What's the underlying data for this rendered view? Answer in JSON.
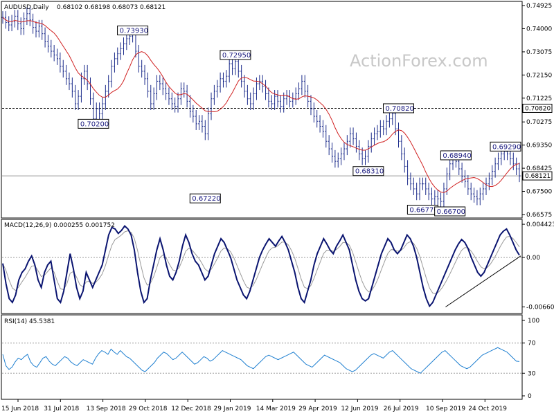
{
  "chart_data": {
    "type": "line",
    "price_panel": {
      "title": "AUDUSD,Daily",
      "ohlc": {
        "open": "0.68102",
        "high": "0.68198",
        "low": "0.68073",
        "close": "0.68121"
      },
      "y_ticks": [
        "0.74925",
        "0.74000",
        "0.73075",
        "0.72150",
        "0.71225",
        "0.70275",
        "0.69350",
        "0.68425",
        "0.67500",
        "0.66575"
      ],
      "ylim": [
        0.66575,
        0.74925
      ],
      "horizontal_lines": [
        {
          "value": 0.7082,
          "label": "0.70820",
          "style": "dashed"
        },
        {
          "value": 0.68121,
          "label": "0.68121",
          "style": "solid-gray"
        }
      ],
      "annotations": [
        {
          "label": "0.73930",
          "value": 0.7393,
          "index": 43
        },
        {
          "label": "0.70200",
          "value": 0.702,
          "index": 30
        },
        {
          "label": "0.67220",
          "value": 0.6722,
          "index": 67
        },
        {
          "label": "0.72950",
          "value": 0.7295,
          "index": 77
        },
        {
          "label": "0.70820",
          "value": 0.7082,
          "index": 131
        },
        {
          "label": "0.68310",
          "value": 0.6831,
          "index": 121
        },
        {
          "label": "0.68940",
          "value": 0.6894,
          "index": 150
        },
        {
          "label": "0.66770",
          "value": 0.6677,
          "index": 139
        },
        {
          "label": "0.66700",
          "value": 0.667,
          "index": 148
        },
        {
          "label": "0.69290",
          "value": 0.6929,
          "index": 170
        }
      ],
      "close_series": [
        0.7445,
        0.7425,
        0.7415,
        0.743,
        0.745,
        0.742,
        0.74,
        0.744,
        0.746,
        0.7435,
        0.7405,
        0.739,
        0.741,
        0.738,
        0.735,
        0.733,
        0.731,
        0.7295,
        0.728,
        0.725,
        0.723,
        0.72,
        0.718,
        0.715,
        0.71,
        0.713,
        0.72,
        0.723,
        0.718,
        0.712,
        0.704,
        0.708,
        0.706,
        0.71,
        0.715,
        0.719,
        0.725,
        0.728,
        0.73,
        0.732,
        0.734,
        0.736,
        0.737,
        0.738,
        0.731,
        0.725,
        0.723,
        0.72,
        0.715,
        0.71,
        0.714,
        0.719,
        0.718,
        0.716,
        0.714,
        0.712,
        0.71,
        0.709,
        0.712,
        0.716,
        0.715,
        0.711,
        0.707,
        0.705,
        0.702,
        0.703,
        0.701,
        0.698,
        0.706,
        0.712,
        0.715,
        0.717,
        0.72,
        0.719,
        0.721,
        0.726,
        0.724,
        0.727,
        0.723,
        0.719,
        0.715,
        0.712,
        0.71,
        0.714,
        0.718,
        0.719,
        0.717,
        0.714,
        0.711,
        0.71,
        0.713,
        0.711,
        0.709,
        0.712,
        0.713,
        0.711,
        0.712,
        0.714,
        0.716,
        0.719,
        0.715,
        0.711,
        0.708,
        0.705,
        0.703,
        0.701,
        0.699,
        0.695,
        0.692,
        0.689,
        0.687,
        0.688,
        0.69,
        0.692,
        0.695,
        0.698,
        0.696,
        0.693,
        0.69,
        0.688,
        0.689,
        0.693,
        0.696,
        0.698,
        0.699,
        0.701,
        0.7,
        0.703,
        0.704,
        0.706,
        0.7,
        0.695,
        0.69,
        0.685,
        0.68,
        0.678,
        0.676,
        0.674,
        0.678,
        0.678,
        0.676,
        0.674,
        0.672,
        0.673,
        0.672,
        0.671,
        0.676,
        0.682,
        0.686,
        0.688,
        0.687,
        0.684,
        0.681,
        0.679,
        0.676,
        0.674,
        0.673,
        0.672,
        0.674,
        0.676,
        0.678,
        0.68,
        0.683,
        0.686,
        0.688,
        0.69,
        0.691,
        0.69,
        0.688,
        0.686,
        0.684,
        0.6812
      ]
    },
    "macd_panel": {
      "title": "MACD(12,26,9) 0.000255 0.001752",
      "y_ticks": [
        "0.004423",
        "0.00",
        "-0.006603"
      ],
      "ylim": [
        -0.0072,
        0.0048
      ],
      "values": [
        -0.0008,
        -0.0035,
        -0.0055,
        -0.006,
        -0.005,
        -0.003,
        -0.002,
        -0.0015,
        -0.0005,
        0.0002,
        -0.001,
        -0.003,
        -0.004,
        -0.002,
        -0.001,
        -0.0005,
        -0.003,
        -0.0055,
        -0.006,
        -0.0045,
        -0.002,
        0.0005,
        -0.0015,
        -0.004,
        -0.0055,
        -0.0045,
        -0.002,
        -0.003,
        -0.004,
        -0.003,
        -0.002,
        -0.001,
        0.001,
        0.003,
        0.004,
        0.0038,
        0.0032,
        0.0036,
        0.0042,
        0.0038,
        0.003,
        0.001,
        -0.002,
        -0.0045,
        -0.006,
        -0.0055,
        -0.003,
        -0.001,
        0.001,
        0.0025,
        0.001,
        -0.001,
        -0.0025,
        -0.003,
        -0.002,
        -0.0005,
        0.0015,
        0.003,
        0.002,
        0.0005,
        -0.0005,
        -0.001,
        -0.002,
        -0.003,
        -0.0025,
        -0.001,
        0.0005,
        0.0015,
        0.0025,
        0.002,
        0.001,
        0.0,
        -0.0015,
        -0.003,
        -0.004,
        -0.005,
        -0.0055,
        -0.0045,
        -0.003,
        -0.0015,
        0.0,
        0.001,
        0.0018,
        0.0025,
        0.002,
        0.0015,
        0.0022,
        0.0028,
        0.002,
        0.001,
        -0.0005,
        -0.002,
        -0.004,
        -0.0055,
        -0.006,
        -0.0045,
        -0.003,
        -0.001,
        0.0005,
        0.0015,
        0.0025,
        0.0018,
        0.001,
        0.0005,
        0.0015,
        0.0022,
        0.003,
        0.002,
        0.001,
        -0.001,
        -0.003,
        -0.0045,
        -0.0055,
        -0.0058,
        -0.0055,
        -0.004,
        -0.0025,
        -0.001,
        0.0005,
        0.0015,
        0.0025,
        0.002,
        0.001,
        0.0005,
        0.001,
        0.002,
        0.003,
        0.0025,
        0.0015,
        0.0,
        -0.002,
        -0.004,
        -0.0055,
        -0.0065,
        -0.006,
        -0.005,
        -0.004,
        -0.003,
        -0.002,
        -0.001,
        0.0,
        0.001,
        0.0018,
        0.0024,
        0.002,
        0.0012,
        0.0,
        -0.001,
        -0.002,
        -0.0025,
        -0.002,
        -0.001,
        0.0,
        0.001,
        0.002,
        0.003,
        0.0035,
        0.0038,
        0.003,
        0.002,
        0.001,
        0.0003
      ]
    },
    "rsi_panel": {
      "title": "RSI(14) 45.5381",
      "y_ticks": [
        "100",
        "70",
        "30",
        "0"
      ],
      "ylim": [
        0,
        100
      ],
      "values": [
        55,
        40,
        35,
        38,
        45,
        50,
        48,
        52,
        55,
        45,
        40,
        38,
        44,
        50,
        52,
        46,
        42,
        40,
        44,
        48,
        52,
        50,
        45,
        42,
        40,
        44,
        48,
        46,
        44,
        42,
        50,
        56,
        60,
        58,
        55,
        62,
        58,
        55,
        60,
        56,
        52,
        50,
        46,
        42,
        38,
        34,
        32,
        36,
        40,
        44,
        50,
        54,
        58,
        56,
        52,
        48,
        50,
        54,
        58,
        54,
        50,
        46,
        42,
        44,
        48,
        52,
        50,
        46,
        48,
        52,
        56,
        60,
        58,
        56,
        54,
        52,
        50,
        48,
        44,
        40,
        38,
        36,
        40,
        44,
        48,
        52,
        54,
        52,
        50,
        48,
        50,
        52,
        54,
        56,
        58,
        54,
        50,
        46,
        42,
        40,
        38,
        42,
        46,
        50,
        54,
        52,
        50,
        48,
        46,
        44,
        40,
        36,
        34,
        32,
        34,
        38,
        42,
        46,
        50,
        54,
        56,
        54,
        52,
        50,
        54,
        58,
        60,
        56,
        52,
        48,
        44,
        40,
        36,
        34,
        32,
        30,
        34,
        38,
        42,
        46,
        50,
        54,
        58,
        60,
        56,
        52,
        48,
        44,
        40,
        38,
        36,
        38,
        42,
        46,
        50,
        54,
        56,
        58,
        60,
        62,
        64,
        62,
        60,
        58,
        54,
        50,
        46,
        45.5
      ],
      "reference_lines": [
        70,
        30
      ]
    },
    "x_tick_labels": [
      "15 Jun 2018",
      "31 Jul 2018",
      "13 Sep 2018",
      "29 Oct 2018",
      "12 Dec 2018",
      "29 Jan 2019",
      "14 Mar 2019",
      "29 Apr 2019",
      "12 Jun 2019",
      "26 Jul 2019",
      "10 Sep 2019",
      "24 Oct 2019"
    ],
    "watermark": "ActionForex.com"
  }
}
